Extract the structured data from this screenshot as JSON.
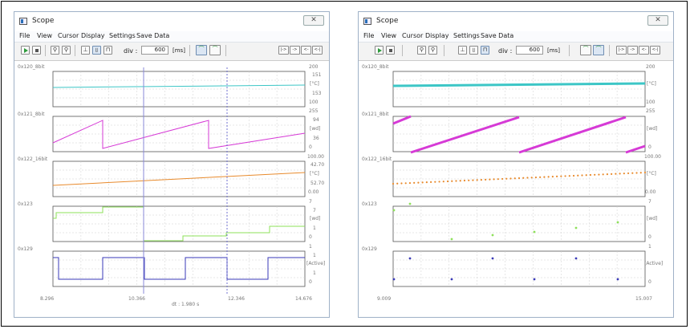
{
  "windows": [
    {
      "title": "Scope",
      "close_glyph": "✕",
      "menu": [
        "File",
        "View",
        "Cursor",
        "Display",
        "Settings",
        "Save Data"
      ],
      "div_label": "div :",
      "div_value": "600",
      "div_unit": "[ms]",
      "nav_buttons": [
        "|->",
        "->",
        "<-",
        "<-|"
      ],
      "channels": [
        {
          "name": "0x120_8bit",
          "labels": [
            "200",
            "151",
            "[°C]",
            "153",
            "100"
          ]
        },
        {
          "name": "0x121_8bit",
          "labels": [
            "255",
            "94",
            "[wd]",
            "36",
            "0"
          ]
        },
        {
          "name": "0x122_16bit",
          "labels": [
            "100.00",
            "42.70",
            "[°C]",
            "52.70",
            "0.00"
          ]
        },
        {
          "name": "0x123",
          "labels": [
            "7",
            "7",
            "[wd]",
            "1",
            "0"
          ]
        },
        {
          "name": "0x129",
          "labels": [
            "1",
            "1",
            "[Active]",
            "1",
            "0"
          ]
        }
      ],
      "x_labels": {
        "left": "8.296",
        "cursor1": "10.366",
        "cursor2": "12.346",
        "right": "14.676"
      },
      "dt_text": "dt : 1.980 s"
    },
    {
      "title": "Scope",
      "close_glyph": "✕",
      "menu": [
        "File",
        "View",
        "Cursor",
        "Display",
        "Settings",
        "Save Data"
      ],
      "div_label": "div :",
      "div_value": "600",
      "div_unit": "[ms]",
      "nav_buttons": [
        "|->",
        "->",
        "<-",
        "<-|"
      ],
      "channels": [
        {
          "name": "0x120_8bit",
          "labels": [
            "200",
            "[°C]",
            "100"
          ]
        },
        {
          "name": "0x121_8bit",
          "labels": [
            "255",
            "[wd]",
            "0"
          ]
        },
        {
          "name": "0x122_16bit",
          "labels": [
            "100.00",
            "[°C]",
            "0.00"
          ]
        },
        {
          "name": "0x123",
          "labels": [
            "7",
            "[wd]",
            "0"
          ]
        },
        {
          "name": "0x129",
          "labels": [
            "1",
            "[Active]",
            "0"
          ]
        }
      ],
      "x_labels": {
        "left": "9.009",
        "right": "15.007"
      }
    }
  ],
  "colors": {
    "ch120": "#3cc6c6",
    "ch121": "#d63ad6",
    "ch122": "#e88a2c",
    "ch123": "#8ee05a",
    "ch129": "#3a3ab8",
    "cursor1": "#8a8ad8",
    "cursor2": "#7070d0"
  }
}
